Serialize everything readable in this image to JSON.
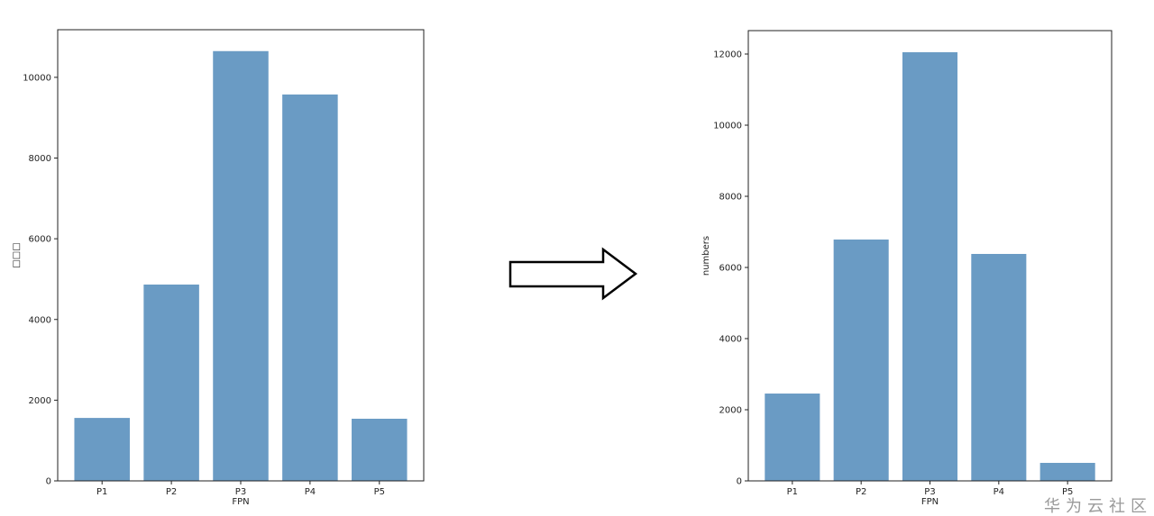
{
  "chart_data": [
    {
      "type": "bar",
      "categories": [
        "P1",
        "P2",
        "P3",
        "P4",
        "P5"
      ],
      "values": [
        1560,
        4865,
        10650,
        9575,
        1540
      ],
      "xlabel": "FPN",
      "ylabel": "□□□",
      "ylim": [
        0,
        11180
      ],
      "yticks": [
        0,
        2000,
        4000,
        6000,
        8000,
        10000
      ],
      "grid": false,
      "color": "#6a9bc4"
    },
    {
      "type": "bar",
      "categories": [
        "P1",
        "P2",
        "P3",
        "P4",
        "P5"
      ],
      "values": [
        2455,
        6785,
        12050,
        6380,
        506
      ],
      "xlabel": "FPN",
      "ylabel": "numbers",
      "ylim": [
        0,
        12658
      ],
      "yticks": [
        0,
        2000,
        4000,
        6000,
        8000,
        10000,
        12000
      ],
      "grid": false,
      "color": "#6a9bc4"
    }
  ],
  "watermark": "华为云社区",
  "arrow_icon": "right-arrow-icon"
}
